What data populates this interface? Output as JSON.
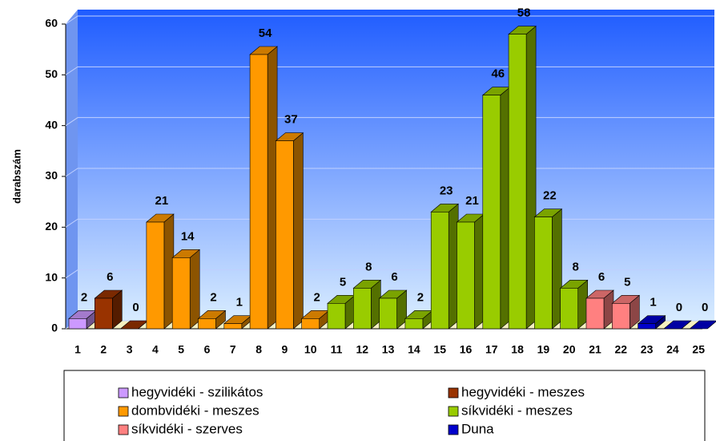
{
  "chart_data": {
    "type": "bar3d",
    "y_label": "darabszám",
    "categories": [
      "1",
      "2",
      "3",
      "4",
      "5",
      "6",
      "7",
      "8",
      "9",
      "10",
      "11",
      "12",
      "13",
      "14",
      "15",
      "16",
      "17",
      "18",
      "19",
      "20",
      "21",
      "22",
      "23",
      "24",
      "25"
    ],
    "series": [
      {
        "name": "hegyvidéki - szilikátos",
        "color": "#cc99ff",
        "values": [
          2,
          null,
          null,
          null,
          null,
          null,
          null,
          null,
          null,
          null,
          null,
          null,
          null,
          null,
          null,
          null,
          null,
          null,
          null,
          null,
          null,
          null,
          null,
          null,
          null
        ]
      },
      {
        "name": "hegyvidéki - meszes",
        "color": "#993300",
        "values": [
          null,
          6,
          0,
          null,
          null,
          null,
          null,
          null,
          null,
          null,
          null,
          null,
          null,
          null,
          null,
          null,
          null,
          null,
          null,
          null,
          null,
          null,
          null,
          null,
          null
        ]
      },
      {
        "name": "dombvidéki - meszes",
        "color": "#ff9900",
        "values": [
          null,
          null,
          null,
          21,
          14,
          2,
          1,
          54,
          37,
          2,
          null,
          null,
          null,
          null,
          null,
          null,
          null,
          null,
          null,
          null,
          null,
          null,
          null,
          null,
          null
        ]
      },
      {
        "name": "síkvidéki - meszes",
        "color": "#99cc00",
        "values": [
          null,
          null,
          null,
          null,
          null,
          null,
          null,
          null,
          null,
          null,
          5,
          8,
          6,
          2,
          23,
          21,
          46,
          58,
          22,
          8,
          null,
          null,
          null,
          null,
          null
        ]
      },
      {
        "name": "síkvidéki - szerves",
        "color": "#ff8080",
        "values": [
          null,
          null,
          null,
          null,
          null,
          null,
          null,
          null,
          null,
          null,
          null,
          null,
          null,
          null,
          null,
          null,
          null,
          null,
          null,
          null,
          6,
          5,
          null,
          null,
          null
        ]
      },
      {
        "name": "Duna",
        "color": "#0000cc",
        "values": [
          null,
          null,
          null,
          null,
          null,
          null,
          null,
          null,
          null,
          null,
          null,
          null,
          null,
          null,
          null,
          null,
          null,
          null,
          null,
          null,
          null,
          null,
          1,
          0,
          0
        ]
      }
    ],
    "ylim": [
      0,
      60
    ],
    "yticks": [
      0,
      10,
      20,
      30,
      40,
      50,
      60
    ],
    "grid": true,
    "legend": "bottom"
  }
}
